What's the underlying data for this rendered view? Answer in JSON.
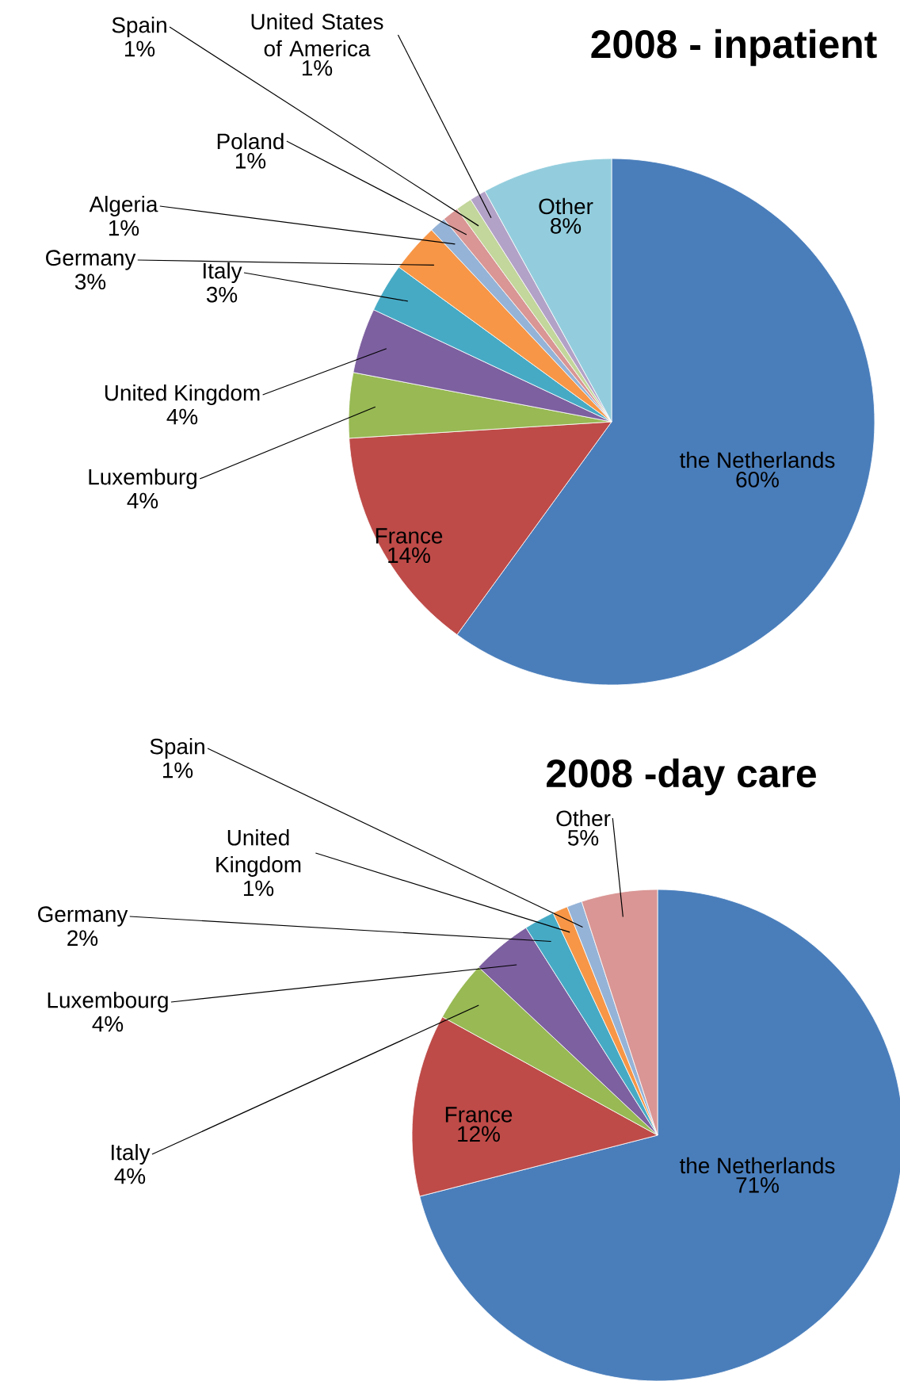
{
  "chart_data": [
    {
      "type": "pie",
      "title": "2008 - inpatient",
      "categories": [
        "the Netherlands",
        "France",
        "Luxemburg",
        "United Kingdom",
        "Italy",
        "Germany",
        "Algeria",
        "Poland",
        "Spain",
        "United States of America",
        "Other"
      ],
      "values": [
        60,
        14,
        4,
        4,
        3,
        3,
        1,
        1,
        1,
        1,
        8
      ],
      "value_labels": [
        "60%",
        "14%",
        "4%",
        "4%",
        "3%",
        "3%",
        "1%",
        "1%",
        "1%",
        "1%",
        "8%"
      ],
      "colors": [
        "#4a7ebb",
        "#be4b48",
        "#98b954",
        "#7d60a0",
        "#46aac5",
        "#f79646",
        "#95b3d7",
        "#d99694",
        "#c3d69b",
        "#b3a2c7",
        "#93cddd"
      ],
      "data_labels": true
    },
    {
      "type": "pie",
      "title": "2008 -day care",
      "categories": [
        "the Netherlands",
        "France",
        "Italy",
        "Luxembourg",
        "Germany",
        "United Kingdom",
        "Spain",
        "Other"
      ],
      "values": [
        71,
        12,
        4,
        4,
        2,
        1,
        1,
        5
      ],
      "value_labels": [
        "71%",
        "12%",
        "4%",
        "4%",
        "2%",
        "1%",
        "1%",
        "5%"
      ],
      "colors": [
        "#4a7ebb",
        "#be4b48",
        "#98b954",
        "#7d60a0",
        "#46aac5",
        "#f79646",
        "#95b3d7",
        "#d99694"
      ],
      "data_labels": true
    }
  ]
}
